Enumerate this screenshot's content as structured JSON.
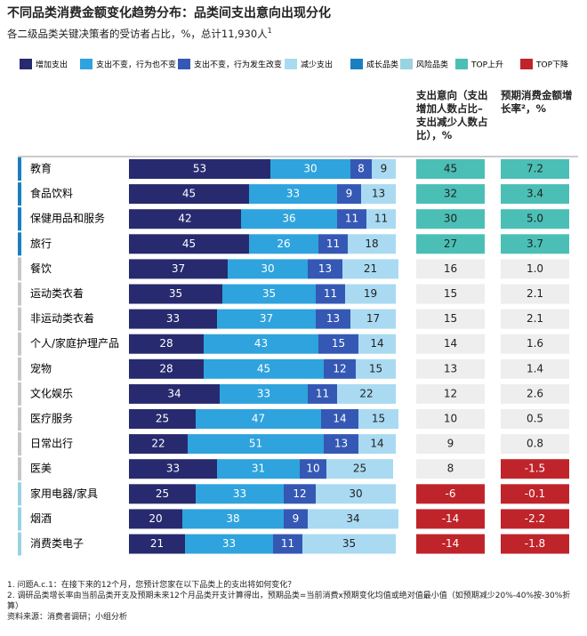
{
  "chart_data": {
    "type": "stacked-bar",
    "title": "不同品类消费金额变化趋势分布：品类间支出意向出现分化",
    "subtitle": "各二级品类关键决策者的受访者占比，%，总计11,930人",
    "subtitle_note": "1",
    "categories": [
      "教育",
      "食品饮料",
      "保健用品和服务",
      "旅行",
      "餐饮",
      "运动类衣着",
      "非运动类衣着",
      "个人/家庭护理产品",
      "宠物",
      "文化娱乐",
      "医疗服务",
      "日常出行",
      "医美",
      "家用电器/家具",
      "烟酒",
      "消费类电子"
    ],
    "category_colors": [
      "#1a7fc1",
      "#1a7fc1",
      "#1a7fc1",
      "#1a7fc1",
      "#c8c8c8",
      "#c8c8c8",
      "#c8c8c8",
      "#c8c8c8",
      "#c8c8c8",
      "#c8c8c8",
      "#c8c8c8",
      "#c8c8c8",
      "#c8c8c8",
      "#9ad3e0",
      "#9ad3e0",
      "#9ad3e0"
    ],
    "xlim": [
      0,
      100
    ],
    "series": [
      {
        "name": "增加支出",
        "color": "#272a6e",
        "values": [
          53,
          45,
          42,
          45,
          37,
          35,
          33,
          28,
          28,
          34,
          25,
          22,
          33,
          25,
          20,
          21
        ]
      },
      {
        "name": "支出不变，行为也不变",
        "color": "#2fa3dd",
        "values": [
          30,
          33,
          36,
          26,
          30,
          35,
          37,
          43,
          45,
          33,
          47,
          51,
          31,
          33,
          38,
          33
        ]
      },
      {
        "name": "支出不变，行为发生改变",
        "color": "#3558b5",
        "values": [
          8,
          9,
          11,
          11,
          13,
          11,
          13,
          15,
          12,
          11,
          14,
          13,
          10,
          12,
          9,
          11
        ]
      },
      {
        "name": "减少支出",
        "color": "#a9daf2",
        "values": [
          9,
          13,
          11,
          18,
          21,
          19,
          17,
          14,
          15,
          22,
          15,
          14,
          25,
          30,
          34,
          35
        ]
      }
    ],
    "legend_extra": [
      {
        "name": "成长品类",
        "color": "#1a7fc1"
      },
      {
        "name": "风险品类",
        "color": "#9ad3e0"
      },
      {
        "name": "TOP上升",
        "color": "#4bbfb6"
      },
      {
        "name": "TOP下降",
        "color": "#c0242b"
      }
    ],
    "columns": [
      {
        "name": "支出意向（支出增加人数占比–支出减少人数占比），%",
        "values": [
          45,
          32,
          30,
          27,
          16,
          15,
          15,
          14,
          13,
          12,
          10,
          9,
          8,
          -6,
          -14,
          -14
        ],
        "colors": [
          "#4bbfb6",
          "#4bbfb6",
          "#4bbfb6",
          "#4bbfb6",
          "#eeeeee",
          "#eeeeee",
          "#eeeeee",
          "#eeeeee",
          "#eeeeee",
          "#eeeeee",
          "#eeeeee",
          "#eeeeee",
          "#eeeeee",
          "#c0242b",
          "#c0242b",
          "#c0242b"
        ]
      },
      {
        "name": "预期消费金额增长率²，%",
        "values": [
          7.2,
          3.4,
          5.0,
          3.7,
          1.0,
          2.1,
          2.1,
          1.6,
          1.4,
          2.6,
          0.5,
          0.8,
          -1.5,
          -0.1,
          -2.2,
          -1.8
        ],
        "value_labels": [
          "7.2",
          "3.4",
          "5.0",
          "3.7",
          "1.0",
          "2.1",
          "2.1",
          "1.6",
          "1.4",
          "2.6",
          "0.5",
          "0.8",
          "-1.5",
          "-0.1",
          "-2.2",
          "-1.8"
        ],
        "colors": [
          "#4bbfb6",
          "#4bbfb6",
          "#4bbfb6",
          "#4bbfb6",
          "#eeeeee",
          "#eeeeee",
          "#eeeeee",
          "#eeeeee",
          "#eeeeee",
          "#eeeeee",
          "#eeeeee",
          "#eeeeee",
          "#c0242b",
          "#c0242b",
          "#c0242b",
          "#c0242b"
        ]
      }
    ],
    "footnotes": [
      "1.  问题A.c.1：在接下来的12个月，您预计您家在以下品类上的支出将如何变化？",
      "2.  调研品类增长率由当前品类开支及预期未来12个月品类开支计算得出，预期品类=当前消费x预期变化均值或绝对值最小值（如预期减少20%-40%按-30%折算）",
      "资料来源：消费者调研；小组分析"
    ]
  }
}
